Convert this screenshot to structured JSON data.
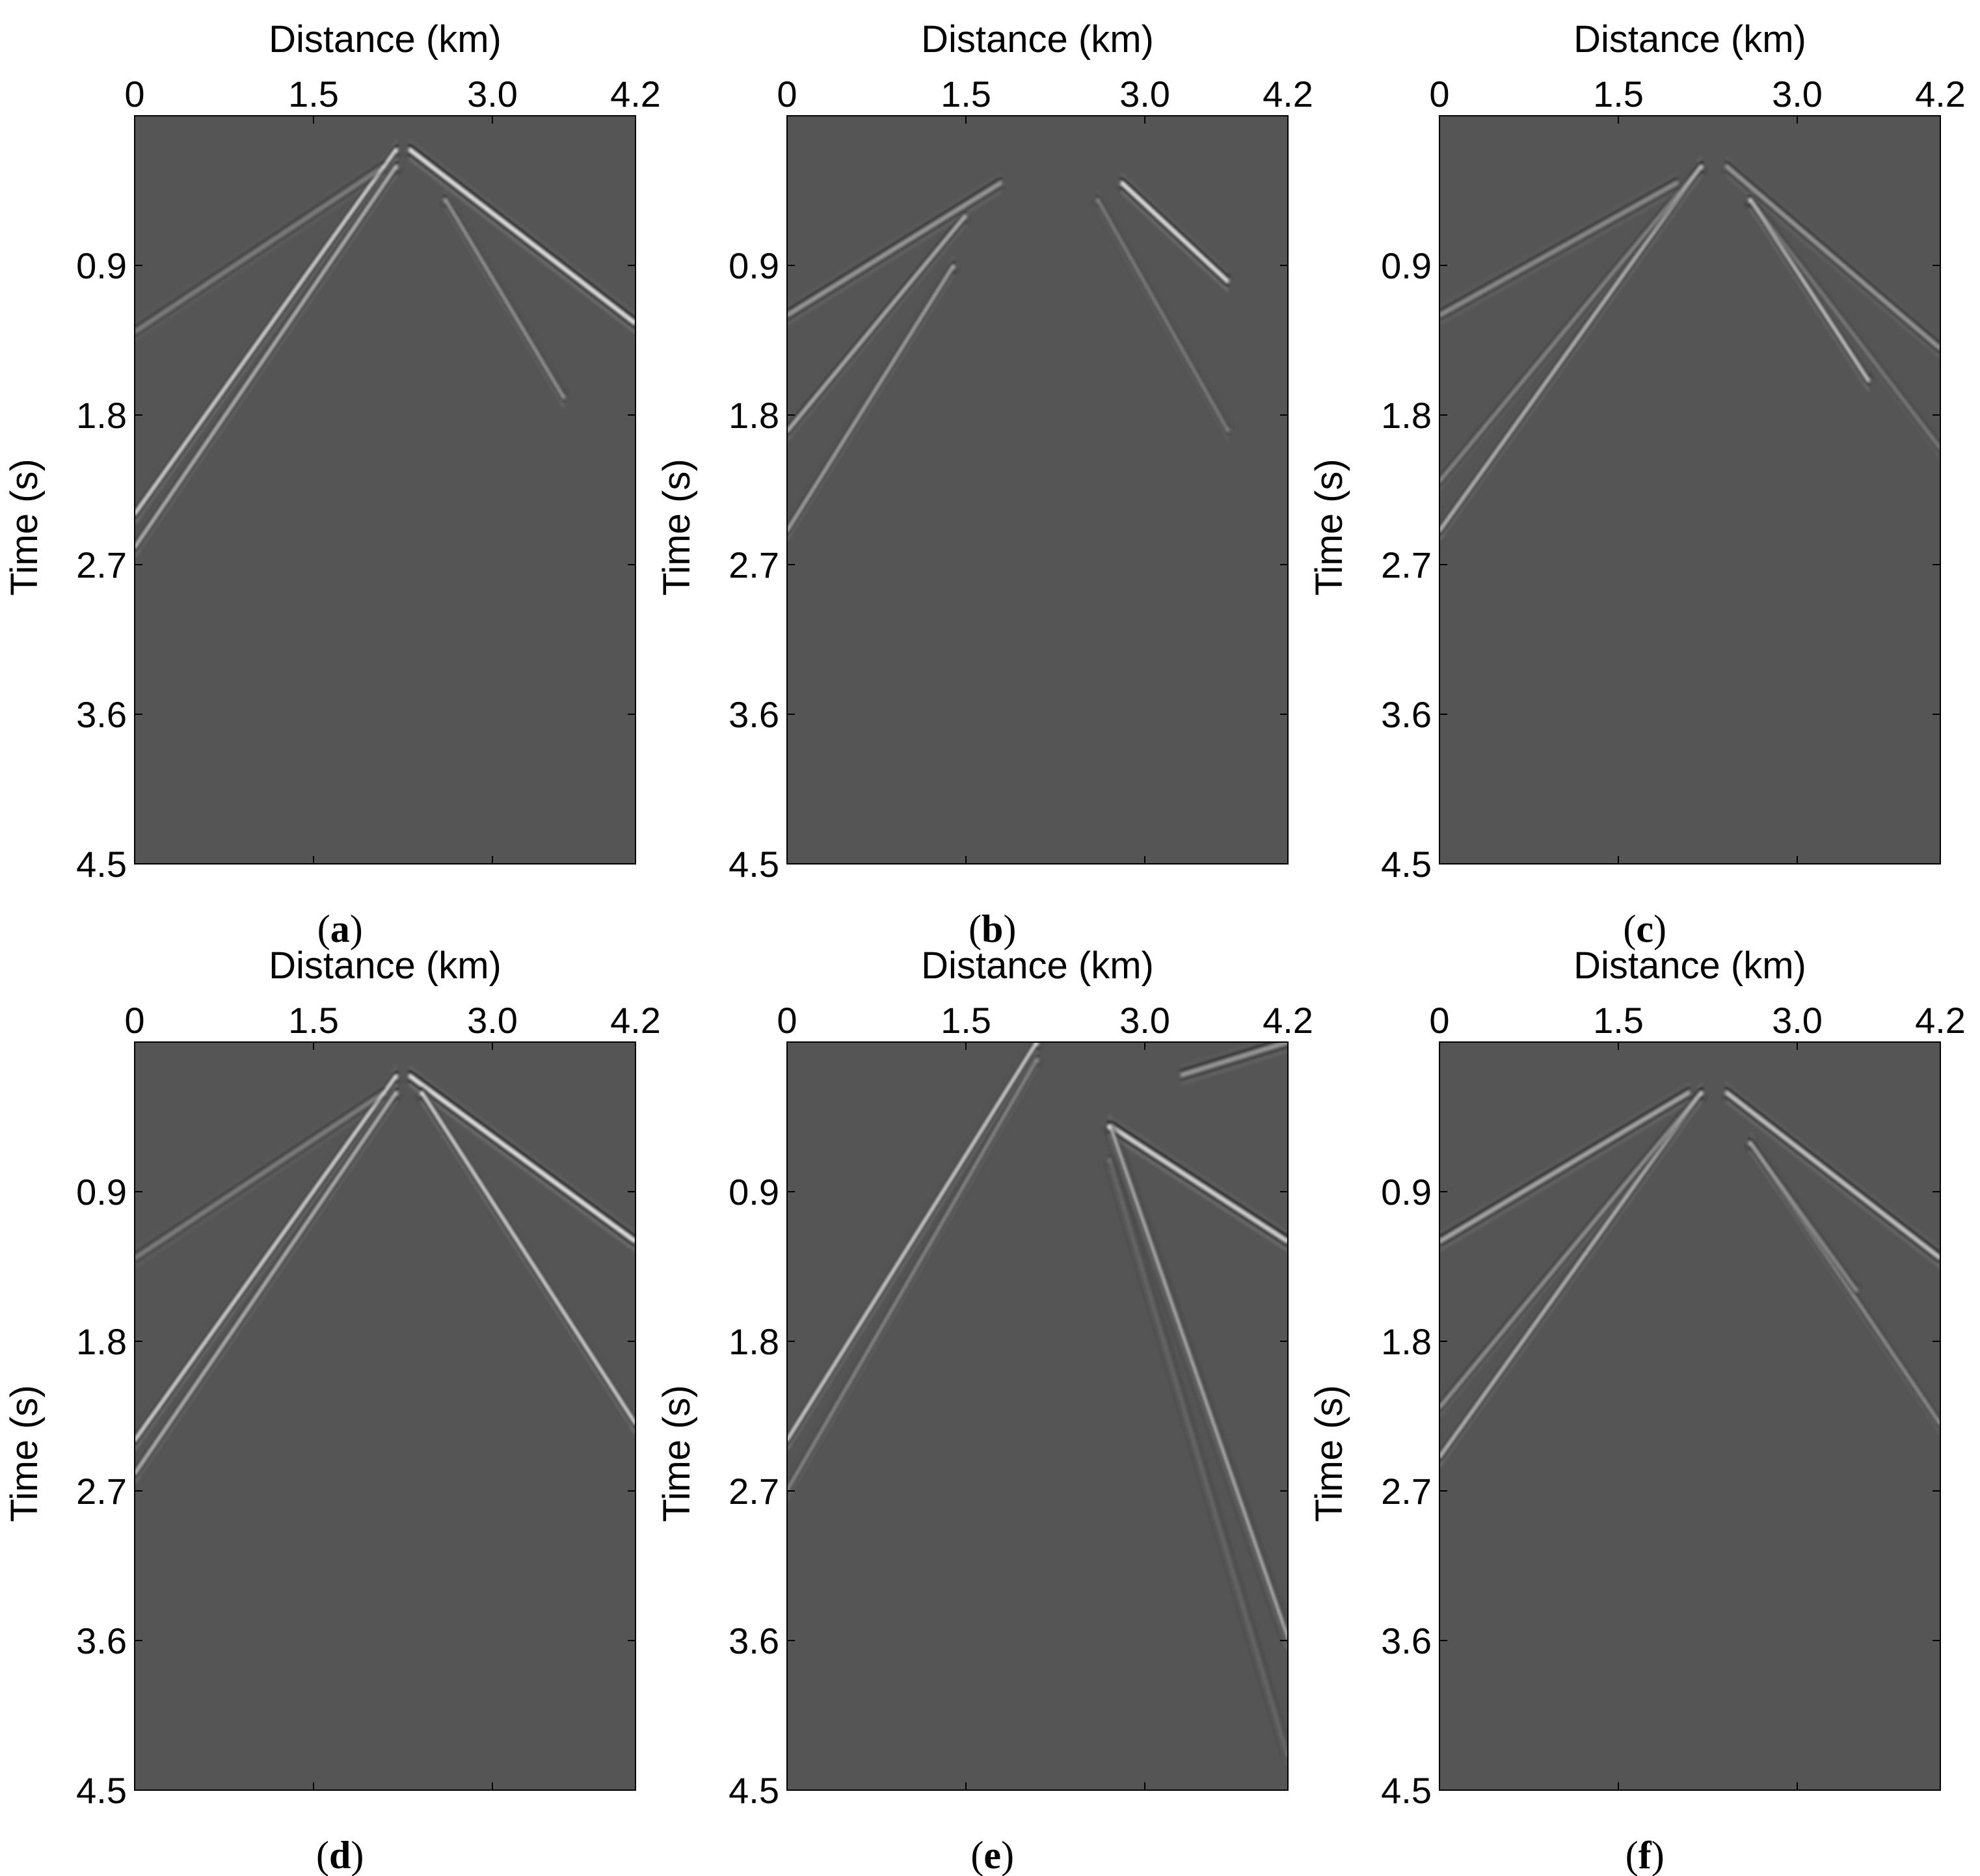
{
  "figure": {
    "panels": [
      {
        "id": "a",
        "label_letter": "a"
      },
      {
        "id": "b",
        "label_letter": "b"
      },
      {
        "id": "c",
        "label_letter": "c"
      },
      {
        "id": "d",
        "label_letter": "d"
      },
      {
        "id": "e",
        "label_letter": "e"
      },
      {
        "id": "f",
        "label_letter": "f"
      }
    ]
  },
  "chart_data": [
    {
      "panel": "a",
      "type": "heatmap",
      "title": "Distance (km)",
      "xlabel": "Distance (km)",
      "ylabel": "Time (s)",
      "xlim": [
        0,
        4.2
      ],
      "ylim": [
        0,
        4.5
      ],
      "xticks": [
        0,
        1.5,
        3.0,
        4.2
      ],
      "xtick_labels": [
        "0",
        "1.5",
        "3.0",
        "4.2"
      ],
      "yticks": [
        0.9,
        1.8,
        2.7,
        3.6,
        4.5
      ],
      "ytick_labels": [
        "0.9",
        "1.8",
        "2.7",
        "3.6",
        "4.5"
      ],
      "background": "#555555",
      "events": [
        {
          "x": [
            0,
            2.2
          ],
          "t": [
            2.4,
            0.2
          ],
          "amp": 1.0
        },
        {
          "x": [
            0,
            2.2
          ],
          "t": [
            2.6,
            0.3
          ],
          "amp": 0.8
        },
        {
          "x": [
            2.3,
            4.2
          ],
          "t": [
            0.2,
            1.25
          ],
          "amp": 1.0
        },
        {
          "x": [
            2.6,
            3.6
          ],
          "t": [
            0.5,
            1.7
          ],
          "amp": 0.6
        },
        {
          "x": [
            0,
            2.1
          ],
          "t": [
            1.3,
            0.3
          ],
          "amp": 0.3
        }
      ]
    },
    {
      "panel": "b",
      "type": "heatmap",
      "title": "Distance (km)",
      "xlabel": "Distance (km)",
      "ylabel": "Time (s)",
      "xlim": [
        0,
        4.2
      ],
      "ylim": [
        0,
        4.5
      ],
      "xticks": [
        0,
        1.5,
        3.0,
        4.2
      ],
      "xtick_labels": [
        "0",
        "1.5",
        "3.0",
        "4.2"
      ],
      "yticks": [
        0.9,
        1.8,
        2.7,
        3.6,
        4.5
      ],
      "ytick_labels": [
        "0.9",
        "1.8",
        "2.7",
        "3.6",
        "4.5"
      ],
      "background": "#555555",
      "events": [
        {
          "x": [
            0,
            1.4
          ],
          "t": [
            2.5,
            0.9
          ],
          "amp": 0.7
        },
        {
          "x": [
            0,
            1.5
          ],
          "t": [
            1.9,
            0.6
          ],
          "amp": 0.7
        },
        {
          "x": [
            0,
            1.8
          ],
          "t": [
            1.2,
            0.4
          ],
          "amp": 0.5
        },
        {
          "x": [
            2.8,
            3.7
          ],
          "t": [
            0.4,
            1.0
          ],
          "amp": 1.0
        },
        {
          "x": [
            2.6,
            3.7
          ],
          "t": [
            0.5,
            1.9
          ],
          "amp": 0.4
        }
      ]
    },
    {
      "panel": "c",
      "type": "heatmap",
      "title": "Distance (km)",
      "xlabel": "Distance (km)",
      "ylabel": "Time (s)",
      "xlim": [
        0,
        4.2
      ],
      "ylim": [
        0,
        4.5
      ],
      "xticks": [
        0,
        1.5,
        3.0,
        4.2
      ],
      "xtick_labels": [
        "0",
        "1.5",
        "3.0",
        "4.2"
      ],
      "yticks": [
        0.9,
        1.8,
        2.7,
        3.6,
        4.5
      ],
      "ytick_labels": [
        "0.9",
        "1.8",
        "2.7",
        "3.6",
        "4.5"
      ],
      "background": "#555555",
      "events": [
        {
          "x": [
            0,
            2.2
          ],
          "t": [
            2.5,
            0.3
          ],
          "amp": 0.8
        },
        {
          "x": [
            0,
            2.2
          ],
          "t": [
            2.2,
            0.3
          ],
          "amp": 0.4
        },
        {
          "x": [
            0,
            2.0
          ],
          "t": [
            1.2,
            0.4
          ],
          "amp": 0.4
        },
        {
          "x": [
            2.6,
            3.6
          ],
          "t": [
            0.5,
            1.6
          ],
          "amp": 0.9
        },
        {
          "x": [
            2.4,
            4.2
          ],
          "t": [
            0.3,
            1.4
          ],
          "amp": 0.5
        },
        {
          "x": [
            2.6,
            4.2
          ],
          "t": [
            0.5,
            2.0
          ],
          "amp": 0.3
        }
      ]
    },
    {
      "panel": "d",
      "type": "heatmap",
      "title": "Distance (km)",
      "xlabel": "Distance (km)",
      "ylabel": "Time (s)",
      "xlim": [
        0,
        4.2
      ],
      "ylim": [
        0,
        4.5
      ],
      "xticks": [
        0,
        1.5,
        3.0,
        4.2
      ],
      "xtick_labels": [
        "0",
        "1.5",
        "3.0",
        "4.2"
      ],
      "yticks": [
        0.9,
        1.8,
        2.7,
        3.6,
        4.5
      ],
      "ytick_labels": [
        "0.9",
        "1.8",
        "2.7",
        "3.6",
        "4.5"
      ],
      "background": "#555555",
      "events": [
        {
          "x": [
            0,
            2.2
          ],
          "t": [
            2.4,
            0.2
          ],
          "amp": 1.0
        },
        {
          "x": [
            0,
            2.2
          ],
          "t": [
            2.6,
            0.3
          ],
          "amp": 0.8
        },
        {
          "x": [
            2.3,
            4.2
          ],
          "t": [
            0.2,
            1.2
          ],
          "amp": 1.0
        },
        {
          "x": [
            2.4,
            4.2
          ],
          "t": [
            0.3,
            2.3
          ],
          "amp": 1.0
        },
        {
          "x": [
            0,
            2.1
          ],
          "t": [
            1.3,
            0.3
          ],
          "amp": 0.3
        }
      ]
    },
    {
      "panel": "e",
      "type": "heatmap",
      "title": "Distance (km)",
      "xlabel": "Distance (km)",
      "ylabel": "Time (s)",
      "xlim": [
        0,
        4.2
      ],
      "ylim": [
        0,
        4.5
      ],
      "xticks": [
        0,
        1.5,
        3.0,
        4.2
      ],
      "xtick_labels": [
        "0",
        "1.5",
        "3.0",
        "4.2"
      ],
      "yticks": [
        0.9,
        1.8,
        2.7,
        3.6,
        4.5
      ],
      "ytick_labels": [
        "0.9",
        "1.8",
        "2.7",
        "3.6",
        "4.5"
      ],
      "background": "#555555",
      "events": [
        {
          "x": [
            0,
            2.1
          ],
          "t": [
            2.4,
            0.0
          ],
          "amp": 1.0
        },
        {
          "x": [
            0,
            2.1
          ],
          "t": [
            2.7,
            0.1
          ],
          "amp": 0.5
        },
        {
          "x": [
            2.7,
            4.2
          ],
          "t": [
            0.5,
            1.2
          ],
          "amp": 0.9
        },
        {
          "x": [
            2.7,
            4.2
          ],
          "t": [
            0.5,
            3.6
          ],
          "amp": 1.0
        },
        {
          "x": [
            2.7,
            4.2
          ],
          "t": [
            0.7,
            4.3
          ],
          "amp": 0.3
        },
        {
          "x": [
            3.3,
            4.2
          ],
          "t": [
            0.2,
            0.0
          ],
          "amp": 0.5
        }
      ]
    },
    {
      "panel": "f",
      "type": "heatmap",
      "title": "Distance (km)",
      "xlabel": "Distance (km)",
      "ylabel": "Time (s)",
      "xlim": [
        0,
        4.2
      ],
      "ylim": [
        0,
        4.5
      ],
      "xticks": [
        0,
        1.5,
        3.0,
        4.2
      ],
      "xtick_labels": [
        "0",
        "1.5",
        "3.0",
        "4.2"
      ],
      "yticks": [
        0.9,
        1.8,
        2.7,
        3.6,
        4.5
      ],
      "ytick_labels": [
        "0.9",
        "1.8",
        "2.7",
        "3.6",
        "4.5"
      ],
      "background": "#555555",
      "events": [
        {
          "x": [
            0,
            2.2
          ],
          "t": [
            2.5,
            0.3
          ],
          "amp": 0.8
        },
        {
          "x": [
            0,
            2.2
          ],
          "t": [
            2.2,
            0.3
          ],
          "amp": 0.5
        },
        {
          "x": [
            0,
            2.1
          ],
          "t": [
            1.2,
            0.3
          ],
          "amp": 0.6
        },
        {
          "x": [
            2.4,
            4.2
          ],
          "t": [
            0.3,
            1.3
          ],
          "amp": 0.8
        },
        {
          "x": [
            2.6,
            4.2
          ],
          "t": [
            0.6,
            2.3
          ],
          "amp": 0.5
        },
        {
          "x": [
            2.6,
            3.5
          ],
          "t": [
            0.6,
            1.5
          ],
          "amp": 0.5
        }
      ]
    }
  ]
}
